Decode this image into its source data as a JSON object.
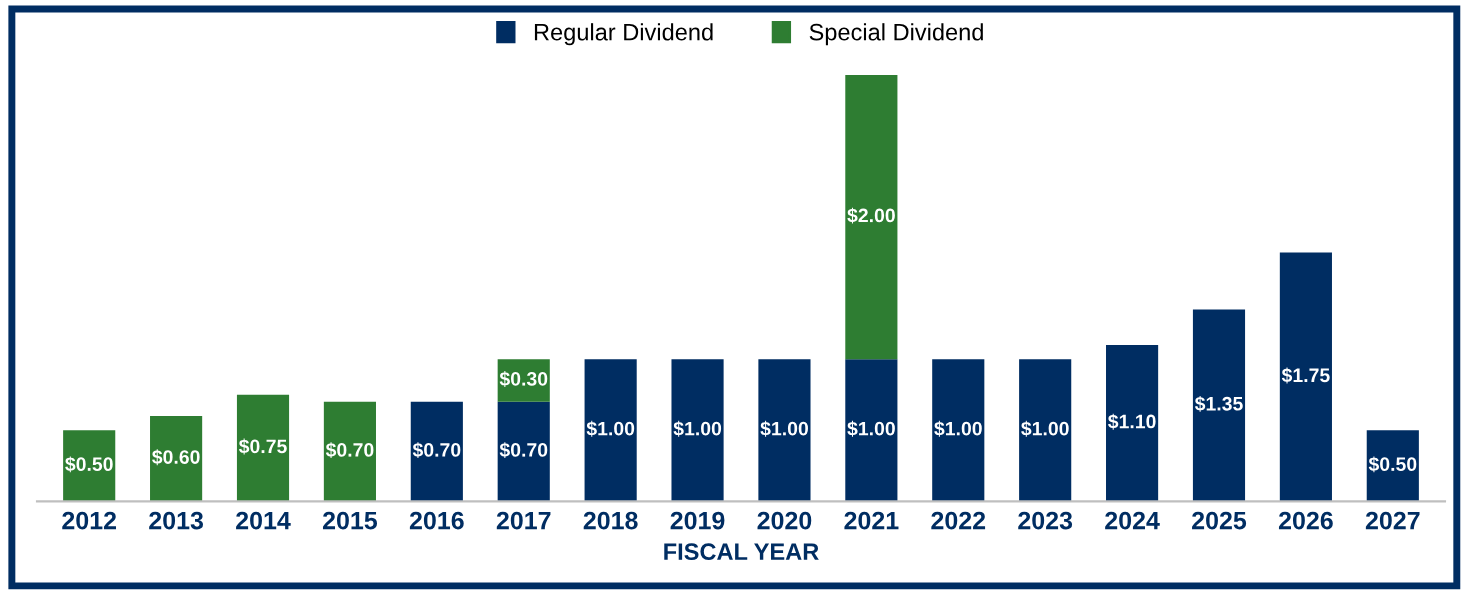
{
  "chart_data": {
    "type": "bar",
    "stacked": true,
    "xlabel": "FISCAL YEAR",
    "legend": "top",
    "grid": false,
    "categories": [
      "2012",
      "2013",
      "2014",
      "2015",
      "2016",
      "2017",
      "2018",
      "2019",
      "2020",
      "2021",
      "2022",
      "2023",
      "2024",
      "2025",
      "2026",
      "2027"
    ],
    "series": [
      {
        "name": "Regular Dividend",
        "color": "#002d62",
        "values": [
          null,
          null,
          null,
          null,
          0.7,
          0.7,
          1.0,
          1.0,
          1.0,
          1.0,
          1.0,
          1.0,
          1.1,
          1.35,
          1.75,
          0.5
        ],
        "value_labels": [
          null,
          null,
          null,
          null,
          "$0.70",
          "$0.70",
          "$1.00",
          "$1.00",
          "$1.00",
          "$1.00",
          "$1.00",
          "$1.00",
          "$1.10",
          "$1.35",
          "$1.75",
          "$0.50"
        ]
      },
      {
        "name": "Special Dividend",
        "color": "#2e7d32",
        "values": [
          0.5,
          0.6,
          0.75,
          0.7,
          null,
          0.3,
          null,
          null,
          null,
          2.0,
          null,
          null,
          null,
          null,
          null,
          null
        ],
        "value_labels": [
          "$0.50",
          "$0.60",
          "$0.75",
          "$0.70",
          null,
          "$0.30",
          null,
          null,
          null,
          "$2.00",
          null,
          null,
          null,
          null,
          null,
          null
        ]
      }
    ]
  }
}
